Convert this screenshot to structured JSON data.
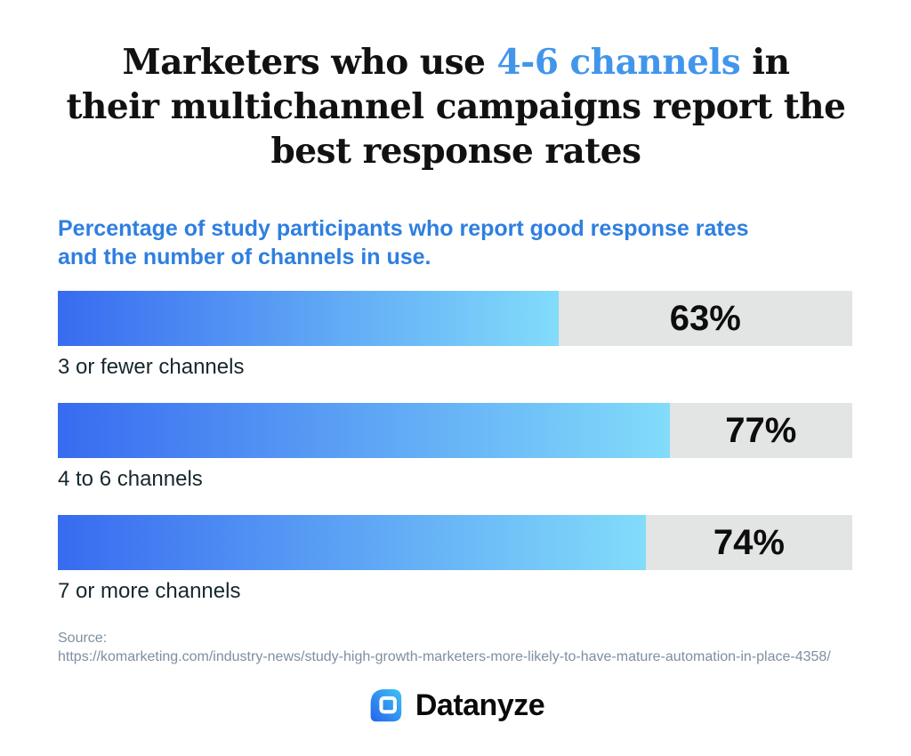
{
  "title": {
    "line1_before": "Marketers who use ",
    "line1_highlight": "4-6 channels",
    "line1_after": " in",
    "line2": "their multichannel campaigns report the",
    "line3": "best response rates"
  },
  "subtitle": {
    "line1": "Percentage of study participants who report good response rates",
    "line2": "and the number of channels in use."
  },
  "chart_data": {
    "type": "bar",
    "orientation": "horizontal",
    "title": "Marketers who use 4-6 channels in their multichannel campaigns report the best response rates",
    "subtitle": "Percentage of study participants who report good response rates and the number of channels in use.",
    "categories": [
      "3 or fewer channels",
      "4 to 6 channels",
      "7 or more channels"
    ],
    "values": [
      63,
      77,
      74
    ],
    "value_labels": [
      "63%",
      "77%",
      "74%"
    ],
    "xlim": [
      0,
      100
    ],
    "legend": "none",
    "grid": false
  },
  "source": {
    "label": "Source:",
    "url": "https://komarketing.com/industry-news/study-high-growth-marketers-more-likely-to-have-mature-automation-in-place-4358/"
  },
  "footer": {
    "brand": "Datanyze"
  },
  "colors": {
    "title_text": "#111111",
    "title_highlight": "#4196ea",
    "subtitle": "#2e7fe0",
    "bar_gradient_start": "#386bf0",
    "bar_gradient_end": "#82dcfa",
    "bar_track": "#e3e4e4",
    "category_label": "#16282d",
    "value_label": "#0d0d0d",
    "source_text": "#7d8fa1",
    "logo_gradient_start": "#2563eb",
    "logo_gradient_end": "#3ec3f7"
  }
}
